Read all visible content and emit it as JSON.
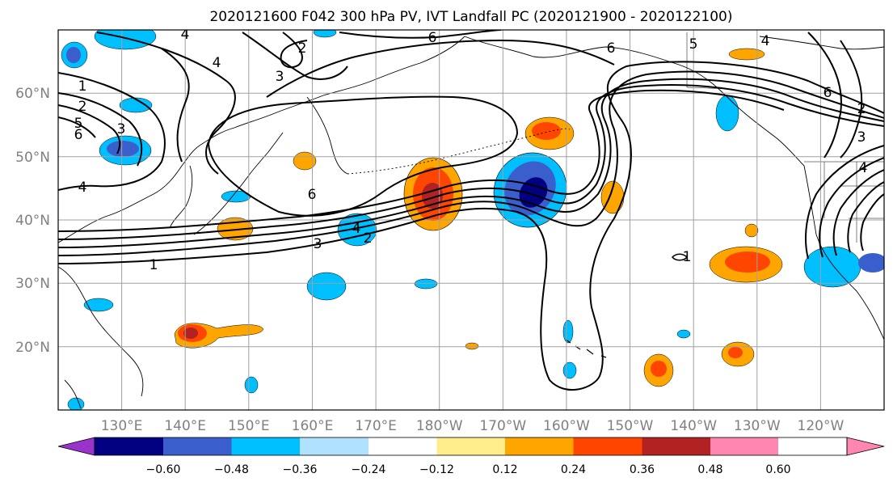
{
  "title": "2020121600 F042 300 hPa PV, IVT Landfall PC (2020121900 - 2020122100)",
  "map": {
    "lon_range": [
      120,
      250
    ],
    "lat_range": [
      10,
      70
    ],
    "lat_ticks": [
      {
        "value": 20,
        "label": "20°N"
      },
      {
        "value": 30,
        "label": "30°N"
      },
      {
        "value": 40,
        "label": "40°N"
      },
      {
        "value": 50,
        "label": "50°N"
      },
      {
        "value": 60,
        "label": "60°N"
      }
    ],
    "lon_ticks": [
      {
        "value": 130,
        "label": "130°E"
      },
      {
        "value": 140,
        "label": "140°E"
      },
      {
        "value": 150,
        "label": "150°E"
      },
      {
        "value": 160,
        "label": "160°E"
      },
      {
        "value": 170,
        "label": "170°E"
      },
      {
        "value": 180,
        "label": "180°W"
      },
      {
        "value": 190,
        "label": "170°W"
      },
      {
        "value": 200,
        "label": "160°W"
      },
      {
        "value": 210,
        "label": "150°W"
      },
      {
        "value": 220,
        "label": "140°W"
      },
      {
        "value": 230,
        "label": "130°W"
      },
      {
        "value": 240,
        "label": "120°W"
      }
    ],
    "contour_labels": [
      {
        "text": "4",
        "lon": 140.5,
        "lat": 69.0
      },
      {
        "text": "6",
        "lon": 178.8,
        "lat": 69.0
      },
      {
        "text": "6",
        "lon": 205.7,
        "lat": 67.6
      },
      {
        "text": "5",
        "lon": 221.9,
        "lat": 68.0
      },
      {
        "text": "4",
        "lon": 232.3,
        "lat": 68.7
      },
      {
        "text": "2",
        "lon": 158.3,
        "lat": 67.6
      },
      {
        "text": "4",
        "lon": 144.6,
        "lat": 65.3
      },
      {
        "text": "3",
        "lon": 155.0,
        "lat": 62.7
      },
      {
        "text": "1",
        "lon": 123.8,
        "lat": 60.9
      },
      {
        "text": "2",
        "lon": 124.0,
        "lat": 57.6
      },
      {
        "text": "5",
        "lon": 123.1,
        "lat": 54.9
      },
      {
        "text": "6",
        "lon": 123.1,
        "lat": 53.6
      },
      {
        "text": "3",
        "lon": 129.9,
        "lat": 53.9
      },
      {
        "text": "4",
        "lon": 123.8,
        "lat": 44.4
      },
      {
        "text": "6",
        "lon": 159.7,
        "lat": 43.5
      },
      {
        "text": "4",
        "lon": 166.8,
        "lat": 38.0
      },
      {
        "text": "2",
        "lon": 168.3,
        "lat": 36.6
      },
      {
        "text": "3",
        "lon": 161.4,
        "lat": 35.8
      },
      {
        "text": "1",
        "lon": 134.8,
        "lat": 32.3
      },
      {
        "text": "1",
        "lon": 217.2,
        "lat": 33.0
      },
      {
        "text": "6",
        "lon": 239.9,
        "lat": 58.0
      },
      {
        "text": "2",
        "lon": 245.2,
        "lat": 55.4
      },
      {
        "text": "3",
        "lon": 244.6,
        "lat": 52.2
      },
      {
        "text": "4",
        "lon": 247.8,
        "lat": 47.4
      }
    ]
  },
  "colorbar": {
    "colors": [
      "#9933cc",
      "#000080",
      "#3a5fcd",
      "#00bfff",
      "#b0e2ff",
      "#ffffff",
      "#ffec8b",
      "#ffa500",
      "#ff4500",
      "#b22222",
      "#ff86b0"
    ],
    "ticks": [
      "−0.60",
      "−0.48",
      "−0.36",
      "−0.24",
      "−0.12",
      "0.12",
      "0.24",
      "0.36",
      "0.48",
      "0.60"
    ]
  }
}
